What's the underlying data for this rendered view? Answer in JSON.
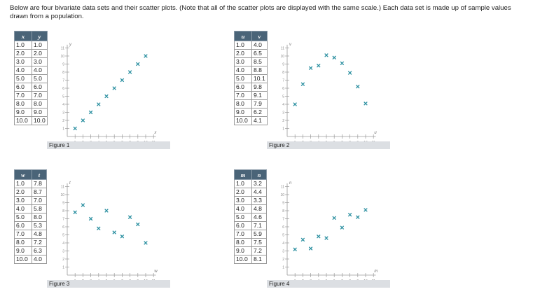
{
  "intro": "Below are four bivariate data sets and their scatter plots. (Note that all of the scatter plots are displayed with the same scale.) Each data set is made up of sample values drawn from a population.",
  "style": {
    "header_bg": "#4a6478",
    "marker_color": "#2a8fa0",
    "figure_label_bg": "#dcdfe3"
  },
  "ticks": [
    "1",
    "2",
    "3",
    "4",
    "5",
    "6",
    "7",
    "8",
    "9",
    "10",
    "11"
  ],
  "figures": [
    {
      "label": "Figure 1",
      "xname": "x",
      "yname": "y",
      "rows": [
        [
          "1.0",
          "1.0"
        ],
        [
          "2.0",
          "2.0"
        ],
        [
          "3.0",
          "3.0"
        ],
        [
          "4.0",
          "4.0"
        ],
        [
          "5.0",
          "5.0"
        ],
        [
          "6.0",
          "6.0"
        ],
        [
          "7.0",
          "7.0"
        ],
        [
          "8.0",
          "8.0"
        ],
        [
          "9.0",
          "9.0"
        ],
        [
          "10.0",
          "10.0"
        ]
      ]
    },
    {
      "label": "Figure 2",
      "xname": "u",
      "yname": "v",
      "rows": [
        [
          "1.0",
          "4.0"
        ],
        [
          "2.0",
          "6.5"
        ],
        [
          "3.0",
          "8.5"
        ],
        [
          "4.0",
          "8.8"
        ],
        [
          "5.0",
          "10.1"
        ],
        [
          "6.0",
          "9.8"
        ],
        [
          "7.0",
          "9.1"
        ],
        [
          "8.0",
          "7.9"
        ],
        [
          "9.0",
          "6.2"
        ],
        [
          "10.0",
          "4.1"
        ]
      ]
    },
    {
      "label": "Figure 3",
      "xname": "w",
      "yname": "t",
      "rows": [
        [
          "1.0",
          "7.8"
        ],
        [
          "2.0",
          "8.7"
        ],
        [
          "3.0",
          "7.0"
        ],
        [
          "4.0",
          "5.8"
        ],
        [
          "5.0",
          "8.0"
        ],
        [
          "6.0",
          "5.3"
        ],
        [
          "7.0",
          "4.8"
        ],
        [
          "8.0",
          "7.2"
        ],
        [
          "9.0",
          "6.3"
        ],
        [
          "10.0",
          "4.0"
        ]
      ]
    },
    {
      "label": "Figure 4",
      "xname": "m",
      "yname": "n",
      "rows": [
        [
          "1.0",
          "3.2"
        ],
        [
          "2.0",
          "4.4"
        ],
        [
          "3.0",
          "3.3"
        ],
        [
          "4.0",
          "4.8"
        ],
        [
          "5.0",
          "4.6"
        ],
        [
          "6.0",
          "7.1"
        ],
        [
          "7.0",
          "5.9"
        ],
        [
          "8.0",
          "7.5"
        ],
        [
          "9.0",
          "7.2"
        ],
        [
          "10.0",
          "8.1"
        ]
      ]
    }
  ],
  "chart_data": [
    {
      "type": "scatter",
      "title": "Figure 1",
      "xlabel": "x",
      "ylabel": "y",
      "xlim": [
        0,
        11
      ],
      "ylim": [
        0,
        11
      ],
      "x": [
        1,
        2,
        3,
        4,
        5,
        6,
        7,
        8,
        9,
        10
      ],
      "y": [
        1,
        2,
        3,
        4,
        5,
        6,
        7,
        8,
        9,
        10
      ]
    },
    {
      "type": "scatter",
      "title": "Figure 2",
      "xlabel": "u",
      "ylabel": "v",
      "xlim": [
        0,
        11
      ],
      "ylim": [
        0,
        11
      ],
      "x": [
        1,
        2,
        3,
        4,
        5,
        6,
        7,
        8,
        9,
        10
      ],
      "y": [
        4.0,
        6.5,
        8.5,
        8.8,
        10.1,
        9.8,
        9.1,
        7.9,
        6.2,
        4.1
      ]
    },
    {
      "type": "scatter",
      "title": "Figure 3",
      "xlabel": "w",
      "ylabel": "t",
      "xlim": [
        0,
        11
      ],
      "ylim": [
        0,
        11
      ],
      "x": [
        1,
        2,
        3,
        4,
        5,
        6,
        7,
        8,
        9,
        10
      ],
      "y": [
        7.8,
        8.7,
        7.0,
        5.8,
        8.0,
        5.3,
        4.8,
        7.2,
        6.3,
        4.0
      ]
    },
    {
      "type": "scatter",
      "title": "Figure 4",
      "xlabel": "m",
      "ylabel": "n",
      "xlim": [
        0,
        11
      ],
      "ylim": [
        0,
        11
      ],
      "x": [
        1,
        2,
        3,
        4,
        5,
        6,
        7,
        8,
        9,
        10
      ],
      "y": [
        3.2,
        4.4,
        3.3,
        4.8,
        4.6,
        7.1,
        5.9,
        7.5,
        7.2,
        8.1
      ]
    }
  ]
}
